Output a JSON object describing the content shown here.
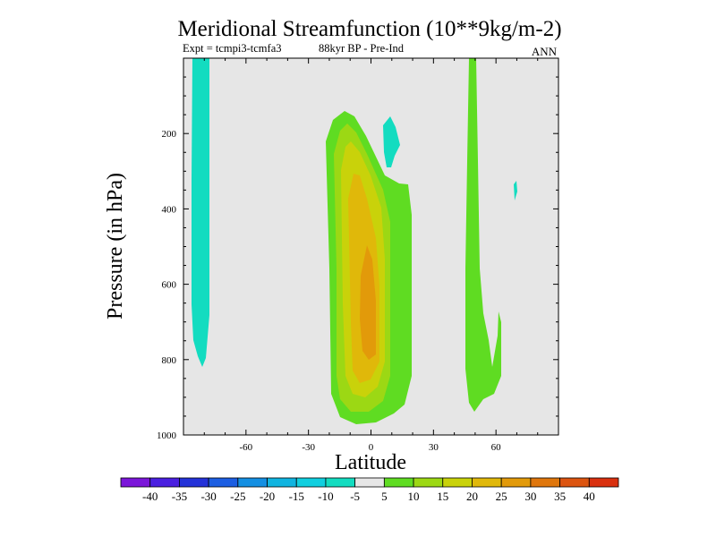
{
  "chart_data": {
    "type": "heatmap",
    "title": "Meridional Streamfunction (10**9kg/m-2)",
    "subtitle_left": "Expt = tcmpi3-tcmfa3",
    "subtitle_mid": "88kyr BP - Pre-Ind",
    "subtitle_right": "ANN",
    "xlabel": "Latitude",
    "ylabel": "Pressure (in hPa)",
    "xlim": [
      -90,
      90
    ],
    "ylim": [
      1000,
      0
    ],
    "x_ticks": [
      -60,
      -30,
      0,
      30,
      60
    ],
    "x_tick_labels": [
      "-60",
      "-30",
      "0",
      "30",
      "60"
    ],
    "y_ticks": [
      200,
      400,
      600,
      800,
      1000
    ],
    "y_tick_labels": [
      "200",
      "400",
      "600",
      "800",
      "1000"
    ],
    "colorbar_labels": [
      "-40",
      "-35",
      "-30",
      "-25",
      "-20",
      "-15",
      "-10",
      "-5",
      "5",
      "10",
      "15",
      "20",
      "25",
      "30",
      "35",
      "40"
    ],
    "colorbar_colors": [
      "#7b16d9",
      "#4a1fe0",
      "#2432d8",
      "#1c5ee2",
      "#148fe2",
      "#10b4e0",
      "#11cfdf",
      "#13dcc0",
      "#e6e6e6",
      "#5fdc22",
      "#9cd814",
      "#c9d20a",
      "#e0b80a",
      "#e29a0a",
      "#df760c",
      "#dc5410",
      "#d9300f"
    ],
    "features": [
      {
        "name": "cell-neg-south",
        "level": -7.5,
        "color": "#13dcc0"
      },
      {
        "name": "cell-pos-equator",
        "level": 7.5,
        "color": "#5fdc22"
      },
      {
        "name": "cell-pos-equator-l2",
        "level": 12.5,
        "color": "#9cd814"
      },
      {
        "name": "cell-pos-equator-l3",
        "level": 17.5,
        "color": "#c9d20a"
      },
      {
        "name": "cell-pos-equator-l4",
        "level": 22.5,
        "color": "#e0b80a"
      },
      {
        "name": "cell-pos-equator-l5",
        "level": 27.5,
        "color": "#e29a0a"
      },
      {
        "name": "cell-neg-small",
        "level": -7.5,
        "color": "#13dcc0"
      },
      {
        "name": "cell-pos-north",
        "level": 7.5,
        "color": "#5fdc22"
      },
      {
        "name": "cell-neg-north-tiny",
        "level": -7.5,
        "color": "#13dcc0"
      }
    ]
  }
}
